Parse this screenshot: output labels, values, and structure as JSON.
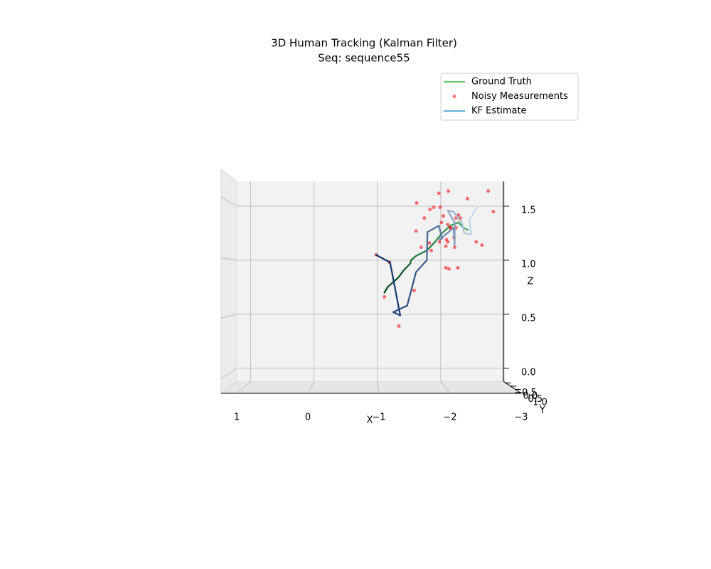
{
  "chart_data": {
    "type": "line3d",
    "title": "3D Human Tracking (Kalman Filter)",
    "subtitle": "Seq: sequence55",
    "xlabel": "X",
    "ylabel": "Y",
    "zlabel": "Z",
    "xlim": [
      1.22,
      -3.0
    ],
    "ylim": [
      -0.65,
      1.1
    ],
    "zlim": [
      -0.12,
      1.73
    ],
    "xticks": [
      1,
      0,
      {
        "value": -1,
        "label": "−1"
      },
      {
        "value": -2,
        "label": "−2"
      },
      {
        "value": -3,
        "label": "−3"
      }
    ],
    "yticks": [
      {
        "value": -0.5,
        "label": "−0.5"
      },
      {
        "value": 0,
        "label": "0.0"
      },
      0.5,
      {
        "value": 1,
        "label": "1.0"
      }
    ],
    "zticks": [
      {
        "value": 0,
        "label": "0.0"
      },
      0.5,
      {
        "value": 1,
        "label": "1.0"
      },
      1.5
    ],
    "grid": true,
    "legend": "upper right",
    "series": [
      {
        "name": "Ground Truth",
        "kind": "line",
        "color": "#74c476",
        "gradient": [
          "#00441b",
          "#41ab5d"
        ],
        "x": [
          -1.11,
          -1.16,
          -1.33,
          -1.42,
          -1.52,
          -1.53,
          -1.61,
          -1.78,
          -1.91,
          -2.02,
          -2.15,
          -2.28,
          -2.36,
          -2.43
        ],
        "z": [
          0.7,
          0.75,
          0.84,
          0.91,
          0.97,
          1.0,
          1.04,
          1.09,
          1.17,
          1.25,
          1.32,
          1.35,
          1.3,
          1.28
        ]
      },
      {
        "name": "Noisy Measurements",
        "kind": "scatter",
        "color": "#ff0000",
        "alpha": 0.55,
        "x": [
          -0.98,
          -1.19,
          -1.11,
          -1.34,
          -1.58,
          -1.62,
          -1.97,
          -2.12,
          -2.42,
          -2.75,
          -2.83,
          -1.89,
          -1.83,
          -1.99,
          -1.74,
          -1.61,
          -1.82,
          -1.69,
          -1.85,
          -1.98,
          -2.08,
          -2.09,
          -2.11,
          -2.08,
          -2.13,
          -2.27,
          -2.56,
          -2.65,
          -2.22,
          -2.21,
          -2.15,
          -2.24,
          -2.28,
          -2.31,
          -2.24,
          -2.11,
          -2.01,
          -2.04,
          -2.16
        ],
        "z": [
          1.05,
          0.98,
          0.66,
          0.39,
          0.72,
          1.53,
          1.62,
          1.64,
          1.57,
          1.64,
          1.45,
          1.49,
          1.47,
          1.49,
          1.39,
          1.27,
          1.16,
          1.12,
          1.09,
          1.17,
          1.13,
          1.19,
          1.17,
          0.93,
          0.92,
          0.93,
          1.17,
          1.14,
          1.12,
          1.21,
          1.3,
          1.3,
          1.42,
          1.39,
          1.39,
          1.33,
          1.35,
          1.41,
          1.3
        ]
      },
      {
        "name": "KF Estimate",
        "kind": "line",
        "color": "#6baed6",
        "gradient": [
          "#08306b",
          "#c6dbef"
        ],
        "x": [
          -0.98,
          -1.2,
          -1.36,
          -1.25,
          -1.47,
          -1.61,
          -1.78,
          -1.79,
          -1.97,
          -2.02,
          -1.98,
          -2.2,
          -2.22,
          -2.22,
          -2.11,
          -2.2,
          -2.34,
          -2.37,
          -2.48,
          -2.45,
          -2.58
        ],
        "z": [
          1.05,
          0.98,
          0.49,
          0.52,
          0.58,
          0.89,
          1.0,
          1.26,
          1.32,
          1.2,
          1.19,
          1.3,
          1.14,
          1.35,
          1.46,
          1.45,
          1.34,
          1.25,
          1.24,
          1.37,
          1.5
        ]
      }
    ]
  }
}
